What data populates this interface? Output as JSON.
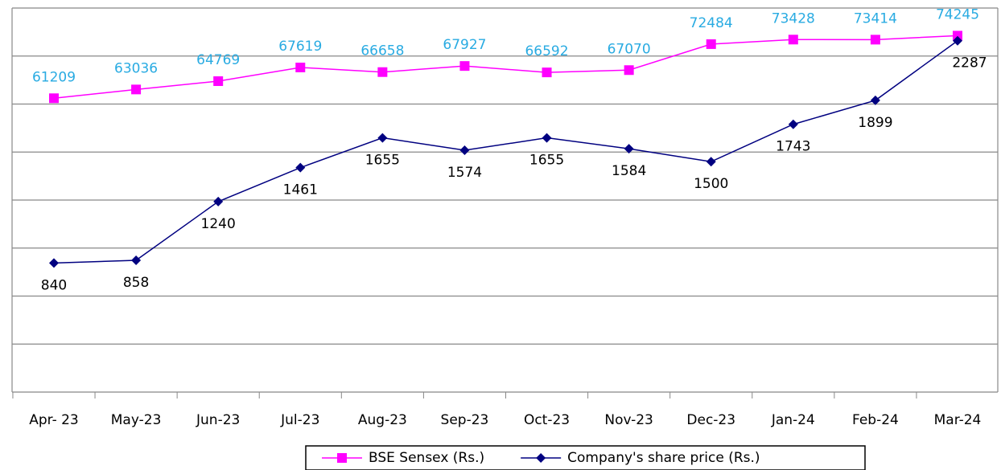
{
  "chart_data": {
    "type": "line",
    "categories": [
      "Apr- 23",
      "May-23",
      "Jun-23",
      "Jul-23",
      "Aug-23",
      "Sep-23",
      "Oct-23",
      "Nov-23",
      "Dec-23",
      "Jan-24",
      "Feb-24",
      "Mar-24"
    ],
    "series": [
      {
        "name": "BSE Sensex (Rs.)",
        "color": "#ff00ff",
        "label_color": "#29abe2",
        "marker": "square",
        "values": [
          61209,
          63036,
          64769,
          67619,
          66658,
          67927,
          66592,
          67070,
          72484,
          73428,
          73414,
          74245
        ]
      },
      {
        "name": "Company's share price (Rs.)",
        "color": "#000080",
        "label_color": "#000000",
        "marker": "diamond",
        "axis": "y2",
        "values": [
          840,
          858,
          1240,
          1461,
          1655,
          1574,
          1655,
          1584,
          1500,
          1743,
          1899,
          2287
        ]
      }
    ],
    "ylim": [
      0,
      80000
    ],
    "yticks": [
      0,
      10000,
      20000,
      30000,
      40000,
      50000,
      60000,
      70000,
      80000
    ],
    "y2lim": [
      0,
      2500
    ],
    "grid": true,
    "legend": "bottom"
  }
}
